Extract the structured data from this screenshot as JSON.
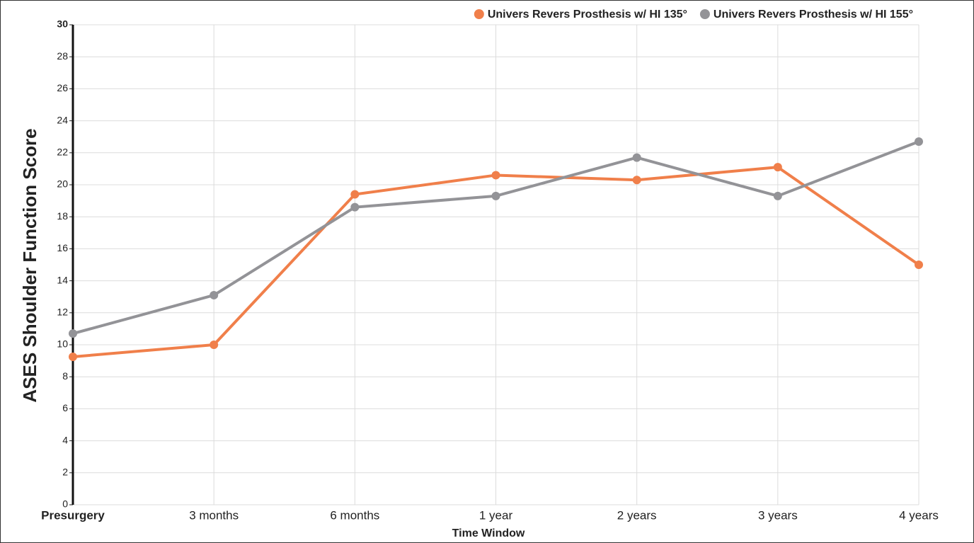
{
  "chart_data": {
    "type": "line",
    "x_label": "Time Window",
    "y_label": "ASES Shoulder Function Score",
    "categories": [
      "Presurgery",
      "3 months",
      "6 months",
      "1 year",
      "2 years",
      "3 years",
      "4 years"
    ],
    "series": [
      {
        "name": "Univers Revers Prosthesis w/ HI 135°",
        "color": "#f07f4a",
        "values": [
          9.25,
          10.0,
          19.4,
          20.6,
          20.3,
          21.1,
          15.0
        ]
      },
      {
        "name": "Univers Revers Prosthesis w/ HI 155°",
        "color": "#939397",
        "values": [
          10.7,
          13.1,
          18.6,
          19.3,
          21.7,
          19.3,
          22.7
        ]
      }
    ],
    "ylim": [
      0,
      30
    ],
    "yticks": [
      0,
      2,
      4,
      6,
      8,
      10,
      12,
      14,
      16,
      18,
      20,
      22,
      24,
      26,
      28,
      30
    ],
    "grid": true,
    "legend": "top-right"
  }
}
